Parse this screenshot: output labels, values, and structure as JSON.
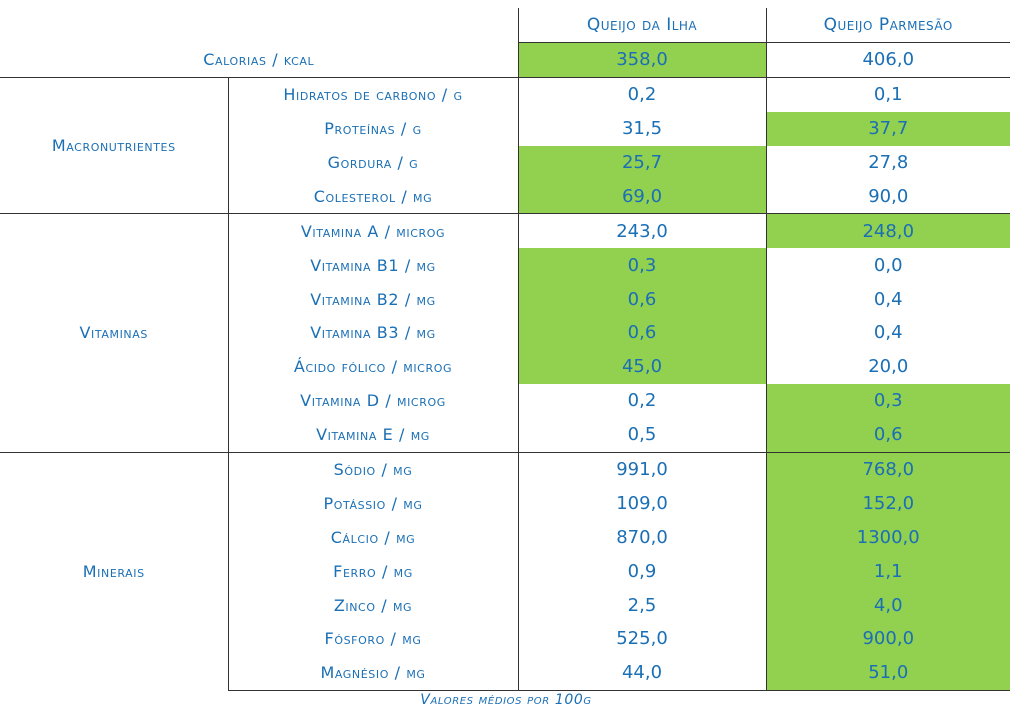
{
  "header": {
    "col1": "Queijo da Ilha",
    "col2": "Queijo Parmesão"
  },
  "highlight_color": "#92d050",
  "calorias": {
    "label": "Calorias / kcal",
    "v1": "358,0",
    "v2": "406,0",
    "hi1": true,
    "hi2": false
  },
  "groups": [
    {
      "name": "Macronutrientes",
      "rows": [
        {
          "label": "Hidratos de carbono / g",
          "v1": "0,2",
          "v2": "0,1",
          "hi1": false,
          "hi2": false
        },
        {
          "label": "Proteínas / g",
          "v1": "31,5",
          "v2": "37,7",
          "hi1": false,
          "hi2": true
        },
        {
          "label": "Gordura / g",
          "v1": "25,7",
          "v2": "27,8",
          "hi1": true,
          "hi2": false
        },
        {
          "label": "Colesterol / mg",
          "v1": "69,0",
          "v2": "90,0",
          "hi1": true,
          "hi2": false
        }
      ]
    },
    {
      "name": "Vitaminas",
      "rows": [
        {
          "label": "Vitamina A / microg",
          "v1": "243,0",
          "v2": "248,0",
          "hi1": false,
          "hi2": true
        },
        {
          "label": "Vitamina B1 / mg",
          "v1": "0,3",
          "v2": "0,0",
          "hi1": true,
          "hi2": false
        },
        {
          "label": "Vitamina B2 / mg",
          "v1": "0,6",
          "v2": "0,4",
          "hi1": true,
          "hi2": false
        },
        {
          "label": "Vitamina B3 / mg",
          "v1": "0,6",
          "v2": "0,4",
          "hi1": true,
          "hi2": false
        },
        {
          "label": "Ácido fólico / microg",
          "v1": "45,0",
          "v2": "20,0",
          "hi1": true,
          "hi2": false
        },
        {
          "label": "Vitamina D / microg",
          "v1": "0,2",
          "v2": "0,3",
          "hi1": false,
          "hi2": true
        },
        {
          "label": "Vitamina E / mg",
          "v1": "0,5",
          "v2": "0,6",
          "hi1": false,
          "hi2": true
        }
      ]
    },
    {
      "name": "Minerais",
      "rows": [
        {
          "label": "Sódio / mg",
          "v1": "991,0",
          "v2": "768,0",
          "hi1": false,
          "hi2": true
        },
        {
          "label": "Potássio / mg",
          "v1": "109,0",
          "v2": "152,0",
          "hi1": false,
          "hi2": true
        },
        {
          "label": "Cálcio / mg",
          "v1": "870,0",
          "v2": "1300,0",
          "hi1": false,
          "hi2": true
        },
        {
          "label": "Ferro / mg",
          "v1": "0,9",
          "v2": "1,1",
          "hi1": false,
          "hi2": true
        },
        {
          "label": "Zinco / mg",
          "v1": "2,5",
          "v2": "4,0",
          "hi1": false,
          "hi2": true
        },
        {
          "label": "Fósforo / mg",
          "v1": "525,0",
          "v2": "900,0",
          "hi1": false,
          "hi2": true
        },
        {
          "label": "Magnésio / mg",
          "v1": "44,0",
          "v2": "51,0",
          "hi1": false,
          "hi2": true
        }
      ]
    }
  ],
  "footnote": "Valores médios por 100g"
}
